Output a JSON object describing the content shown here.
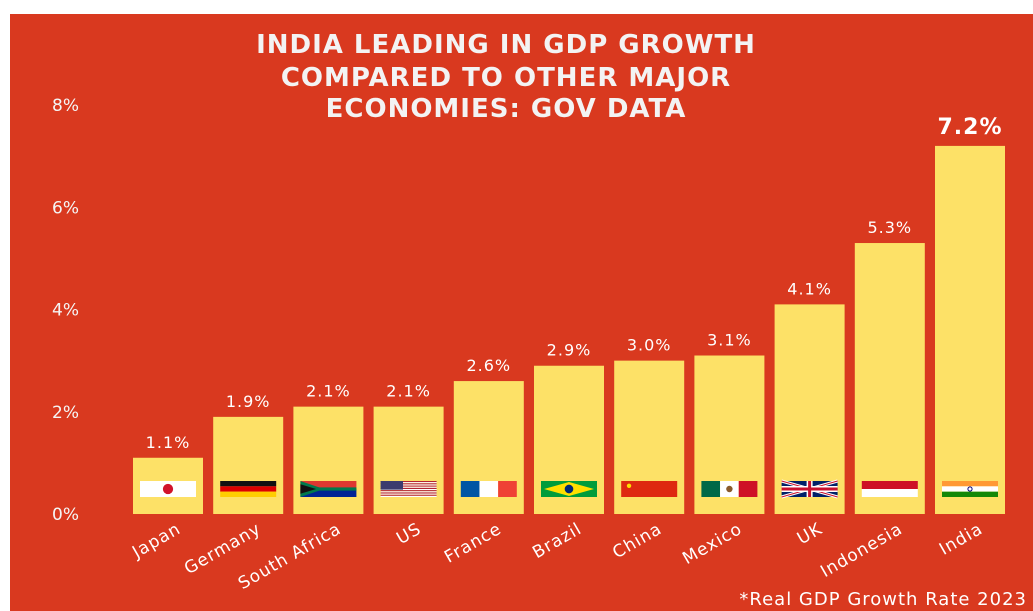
{
  "chart_data": {
    "type": "bar",
    "title_lines": [
      "INDIA LEADING IN GDP GROWTH",
      "COMPARED TO OTHER MAJOR",
      "ECONOMIES: GOV DATA"
    ],
    "categories": [
      "Japan",
      "Germany",
      "South Africa",
      "US",
      "France",
      "Brazil",
      "China",
      "Mexico",
      "UK",
      "Indonesia",
      "India"
    ],
    "values": [
      1.1,
      1.9,
      2.1,
      2.1,
      2.6,
      2.9,
      3.0,
      3.1,
      4.1,
      5.3,
      7.2
    ],
    "value_labels": [
      "1.1%",
      "1.9%",
      "2.1%",
      "2.1%",
      "2.6%",
      "2.9%",
      "3.0%",
      "3.1%",
      "4.1%",
      "5.3%",
      "7.2%"
    ],
    "yticks": [
      0,
      2,
      4,
      6,
      8
    ],
    "ytick_labels": [
      "0%",
      "2%",
      "4%",
      "6%",
      "8%"
    ],
    "ylim": [
      0,
      8
    ],
    "grid": false,
    "flags": [
      "japan-flag",
      "germany-flag",
      "south-africa-flag",
      "us-flag",
      "france-flag",
      "brazil-flag",
      "china-flag",
      "mexico-flag",
      "uk-flag",
      "indonesia-flag",
      "india-flag"
    ],
    "footnote": "*Real GDP Growth Rate 2023",
    "colors": {
      "background": "#d9391f",
      "bar": "#fde167",
      "text": "#ffffff"
    }
  }
}
